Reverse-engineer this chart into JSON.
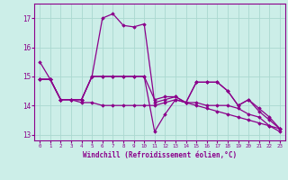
{
  "xlabel": "Windchill (Refroidissement éolien,°C)",
  "xlim": [
    -0.5,
    23.5
  ],
  "ylim": [
    12.8,
    17.5
  ],
  "yticks": [
    13,
    14,
    15,
    16,
    17
  ],
  "xticks": [
    0,
    1,
    2,
    3,
    4,
    5,
    6,
    7,
    8,
    9,
    10,
    11,
    12,
    13,
    14,
    15,
    16,
    17,
    18,
    19,
    20,
    21,
    22,
    23
  ],
  "background_color": "#cceee8",
  "line_color": "#8b008b",
  "grid_color": "#aad8d0",
  "series": [
    {
      "x": [
        0,
        1,
        2,
        3,
        4,
        5,
        6,
        7,
        8,
        9,
        10,
        11,
        12,
        13,
        14,
        15,
        16,
        17,
        18,
        19,
        20,
        21,
        22,
        23
      ],
      "y": [
        15.5,
        14.9,
        14.2,
        14.2,
        14.2,
        15.0,
        17.0,
        17.15,
        16.75,
        16.7,
        16.8,
        14.1,
        14.2,
        14.3,
        14.1,
        14.1,
        14.0,
        14.0,
        14.0,
        13.9,
        13.7,
        13.6,
        13.3,
        13.1
      ]
    },
    {
      "x": [
        0,
        1,
        2,
        3,
        4,
        5,
        6,
        7,
        8,
        9,
        10,
        11,
        12,
        13,
        14,
        15,
        16,
        17,
        18,
        19,
        20,
        21,
        22,
        23
      ],
      "y": [
        14.9,
        14.9,
        14.2,
        14.2,
        14.2,
        15.0,
        15.0,
        15.0,
        15.0,
        15.0,
        15.0,
        13.1,
        13.7,
        14.2,
        14.1,
        14.8,
        14.8,
        14.8,
        14.5,
        14.0,
        14.2,
        13.8,
        13.5,
        13.2
      ]
    },
    {
      "x": [
        0,
        1,
        2,
        3,
        4,
        5,
        6,
        7,
        8,
        9,
        10,
        11,
        12,
        13,
        14,
        15,
        16,
        17,
        18,
        19,
        20,
        21,
        22,
        23
      ],
      "y": [
        14.9,
        14.9,
        14.2,
        14.2,
        14.2,
        15.0,
        15.0,
        15.0,
        15.0,
        15.0,
        15.0,
        14.2,
        14.3,
        14.3,
        14.1,
        14.8,
        14.8,
        14.8,
        14.5,
        14.0,
        14.2,
        13.9,
        13.6,
        13.2
      ]
    },
    {
      "x": [
        0,
        1,
        2,
        3,
        4,
        5,
        6,
        7,
        8,
        9,
        10,
        11,
        12,
        13,
        14,
        15,
        16,
        17,
        18,
        19,
        20,
        21,
        22,
        23
      ],
      "y": [
        14.9,
        14.9,
        14.2,
        14.2,
        14.1,
        14.1,
        14.0,
        14.0,
        14.0,
        14.0,
        14.0,
        14.0,
        14.1,
        14.2,
        14.1,
        14.0,
        13.9,
        13.8,
        13.7,
        13.6,
        13.5,
        13.4,
        13.3,
        13.2
      ]
    }
  ]
}
